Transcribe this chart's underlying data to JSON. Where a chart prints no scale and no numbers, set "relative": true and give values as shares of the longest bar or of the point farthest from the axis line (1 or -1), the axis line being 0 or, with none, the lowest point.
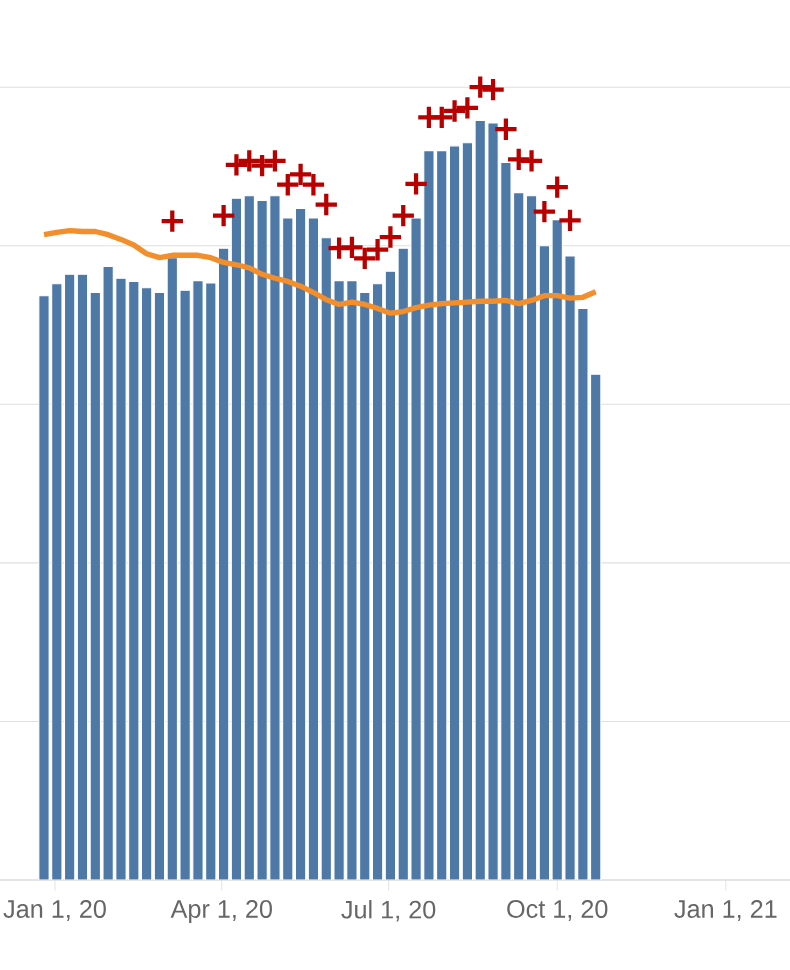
{
  "chart_data": {
    "type": "bar",
    "relative": true,
    "grid": "y",
    "x": [
      "2019-12-26",
      "2020-01-02",
      "2020-01-09",
      "2020-01-16",
      "2020-01-23",
      "2020-01-30",
      "2020-02-06",
      "2020-02-13",
      "2020-02-20",
      "2020-02-27",
      "2020-03-05",
      "2020-03-12",
      "2020-03-19",
      "2020-03-26",
      "2020-04-02",
      "2020-04-09",
      "2020-04-16",
      "2020-04-23",
      "2020-04-30",
      "2020-05-07",
      "2020-05-14",
      "2020-05-21",
      "2020-05-28",
      "2020-06-04",
      "2020-06-11",
      "2020-06-18",
      "2020-06-25",
      "2020-07-02",
      "2020-07-09",
      "2020-07-16",
      "2020-07-23",
      "2020-07-30",
      "2020-08-06",
      "2020-08-13",
      "2020-08-20",
      "2020-08-27",
      "2020-09-03",
      "2020-09-10",
      "2020-09-17",
      "2020-09-24",
      "2020-10-01",
      "2020-10-08",
      "2020-10-15",
      "2020-10-22"
    ],
    "xlim": [
      "2019-12-02",
      "2021-02-05"
    ],
    "xticks": [
      {
        "value": "2020-01-01",
        "label": "Jan 1, 20"
      },
      {
        "value": "2020-04-01",
        "label": "Apr 1, 20"
      },
      {
        "value": "2020-07-01",
        "label": "Jul 1, 20"
      },
      {
        "value": "2020-10-01",
        "label": "Oct 1, 20"
      },
      {
        "value": "2021-01-01",
        "label": "Jan 1, 21"
      }
    ],
    "series": [
      {
        "color": "#4e79a7",
        "values": [
          0.737,
          0.752,
          0.764,
          0.764,
          0.741,
          0.774,
          0.759,
          0.755,
          0.747,
          0.741,
          0.785,
          0.744,
          0.756,
          0.753,
          0.797,
          0.86,
          0.863,
          0.857,
          0.863,
          0.835,
          0.847,
          0.835,
          0.81,
          0.756,
          0.756,
          0.741,
          0.752,
          0.768,
          0.797,
          0.835,
          0.92,
          0.92,
          0.926,
          0.93,
          0.958,
          0.955,
          0.905,
          0.867,
          0.863,
          0.8,
          0.833,
          0.787,
          0.721,
          0.638
        ]
      },
      {
        "type": "line",
        "color": "#f28e2b",
        "marker": "none",
        "values": [
          0.814,
          0.817,
          0.819,
          0.818,
          0.818,
          0.814,
          0.808,
          0.801,
          0.79,
          0.785,
          0.788,
          0.788,
          0.788,
          0.785,
          0.779,
          0.776,
          0.772,
          0.764,
          0.759,
          0.755,
          0.749,
          0.741,
          0.732,
          0.726,
          0.729,
          0.726,
          0.721,
          0.715,
          0.717,
          0.722,
          0.725,
          0.727,
          0.728,
          0.729,
          0.73,
          0.73,
          0.731,
          0.727,
          0.731,
          0.737,
          0.737,
          0.734,
          0.735,
          0.742
        ]
      },
      {
        "type": "scatter",
        "color": "#b80000",
        "marker": "cross",
        "values": [
          null,
          null,
          null,
          null,
          null,
          null,
          null,
          null,
          null,
          null,
          0.831,
          null,
          null,
          null,
          0.838,
          0.902,
          0.907,
          0.901,
          0.907,
          0.877,
          0.89,
          0.877,
          0.852,
          0.797,
          0.798,
          0.784,
          0.795,
          0.811,
          0.838,
          0.878,
          0.962,
          0.962,
          0.97,
          0.974,
          1,
          0.997,
          0.947,
          0.909,
          0.907,
          0.843,
          0.874,
          0.832,
          null,
          null
        ]
      }
    ]
  }
}
